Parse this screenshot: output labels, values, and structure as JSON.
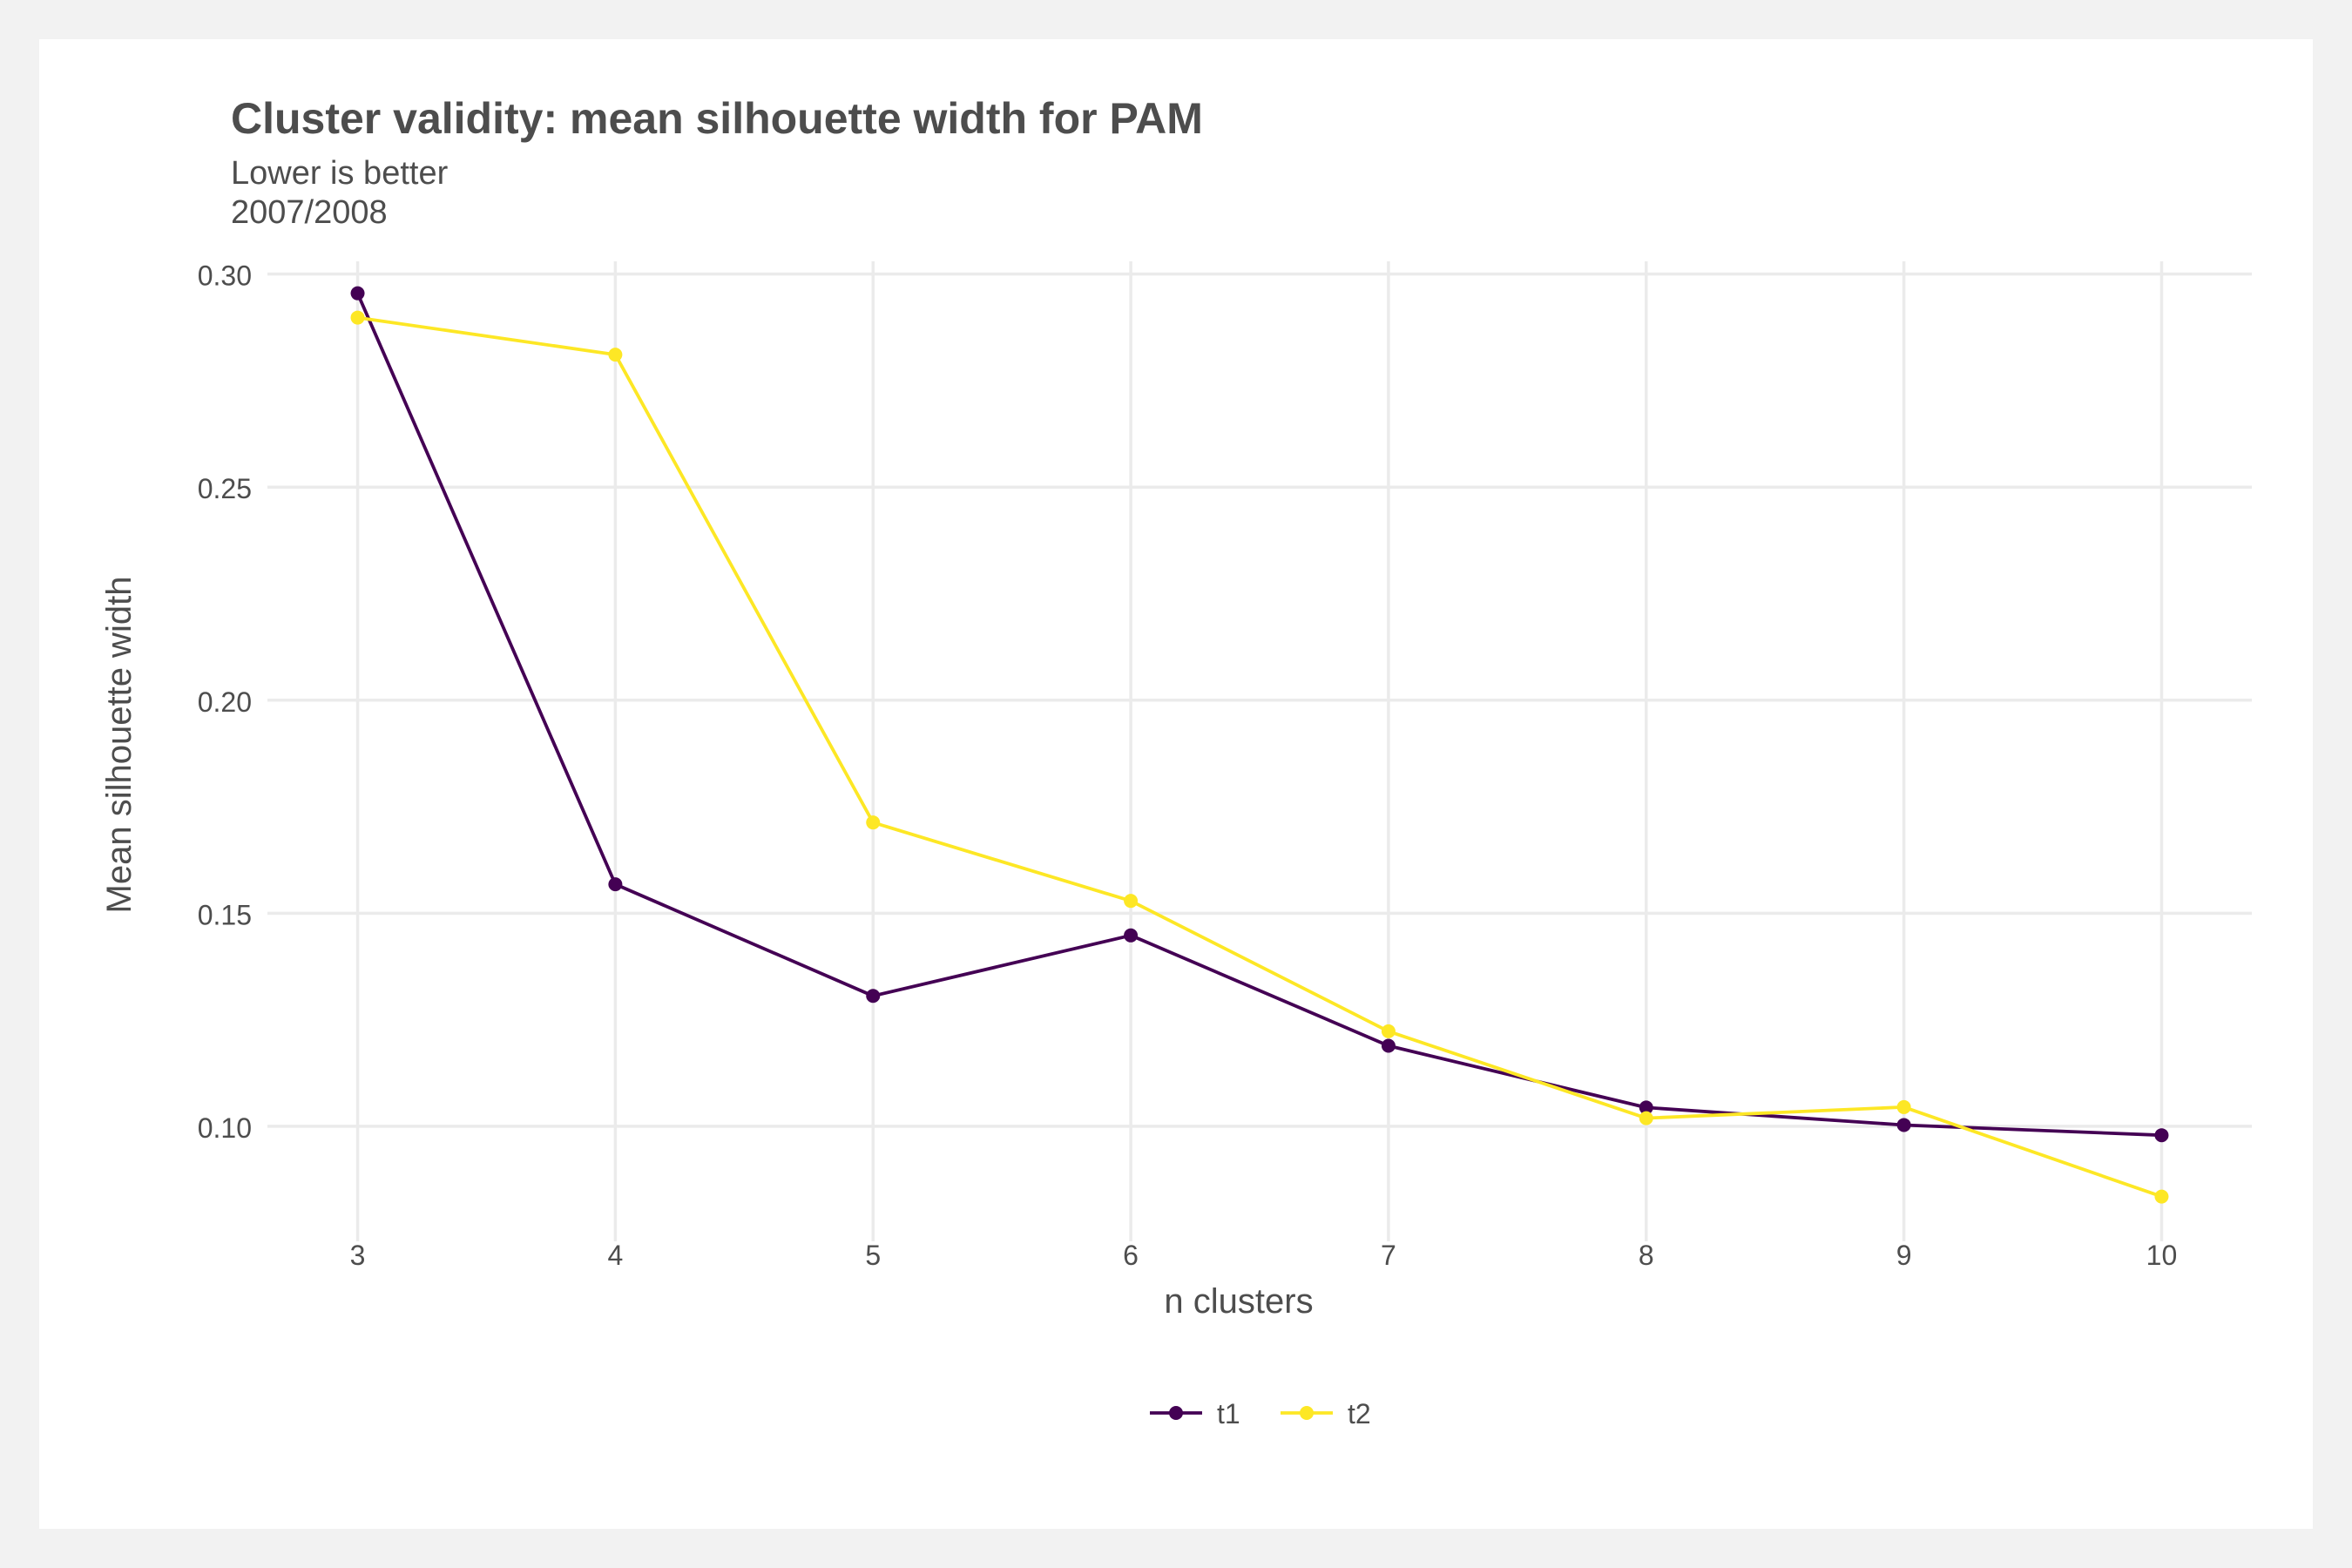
{
  "chart_data": {
    "type": "line",
    "title": "Cluster validity: mean silhouette width for PAM",
    "subtitle_lines": [
      "Lower is better",
      "2007/2008"
    ],
    "xlabel": "n clusters",
    "ylabel": "Mean silhouette width",
    "x": [
      3,
      4,
      5,
      6,
      7,
      8,
      9,
      10
    ],
    "xlim": [
      2.65,
      10.35
    ],
    "ylim": [
      0.073,
      0.303
    ],
    "x_ticks": [
      "3",
      "4",
      "5",
      "6",
      "7",
      "8",
      "9",
      "10"
    ],
    "y_ticks": [
      0.1,
      0.15,
      0.2,
      0.25,
      0.3
    ],
    "y_tick_labels": [
      "0.10",
      "0.15",
      "0.20",
      "0.25",
      "0.30"
    ],
    "grid": true,
    "legend_position": "bottom",
    "series": [
      {
        "name": "t1",
        "color": "#440154",
        "values": [
          0.2955,
          0.1568,
          0.1306,
          0.1448,
          0.1189,
          0.1044,
          0.1003,
          0.0979
        ]
      },
      {
        "name": "t2",
        "color": "#fde725",
        "values": [
          0.2898,
          0.2811,
          0.1713,
          0.1529,
          0.1223,
          0.1019,
          0.1045,
          0.0835
        ]
      }
    ]
  }
}
